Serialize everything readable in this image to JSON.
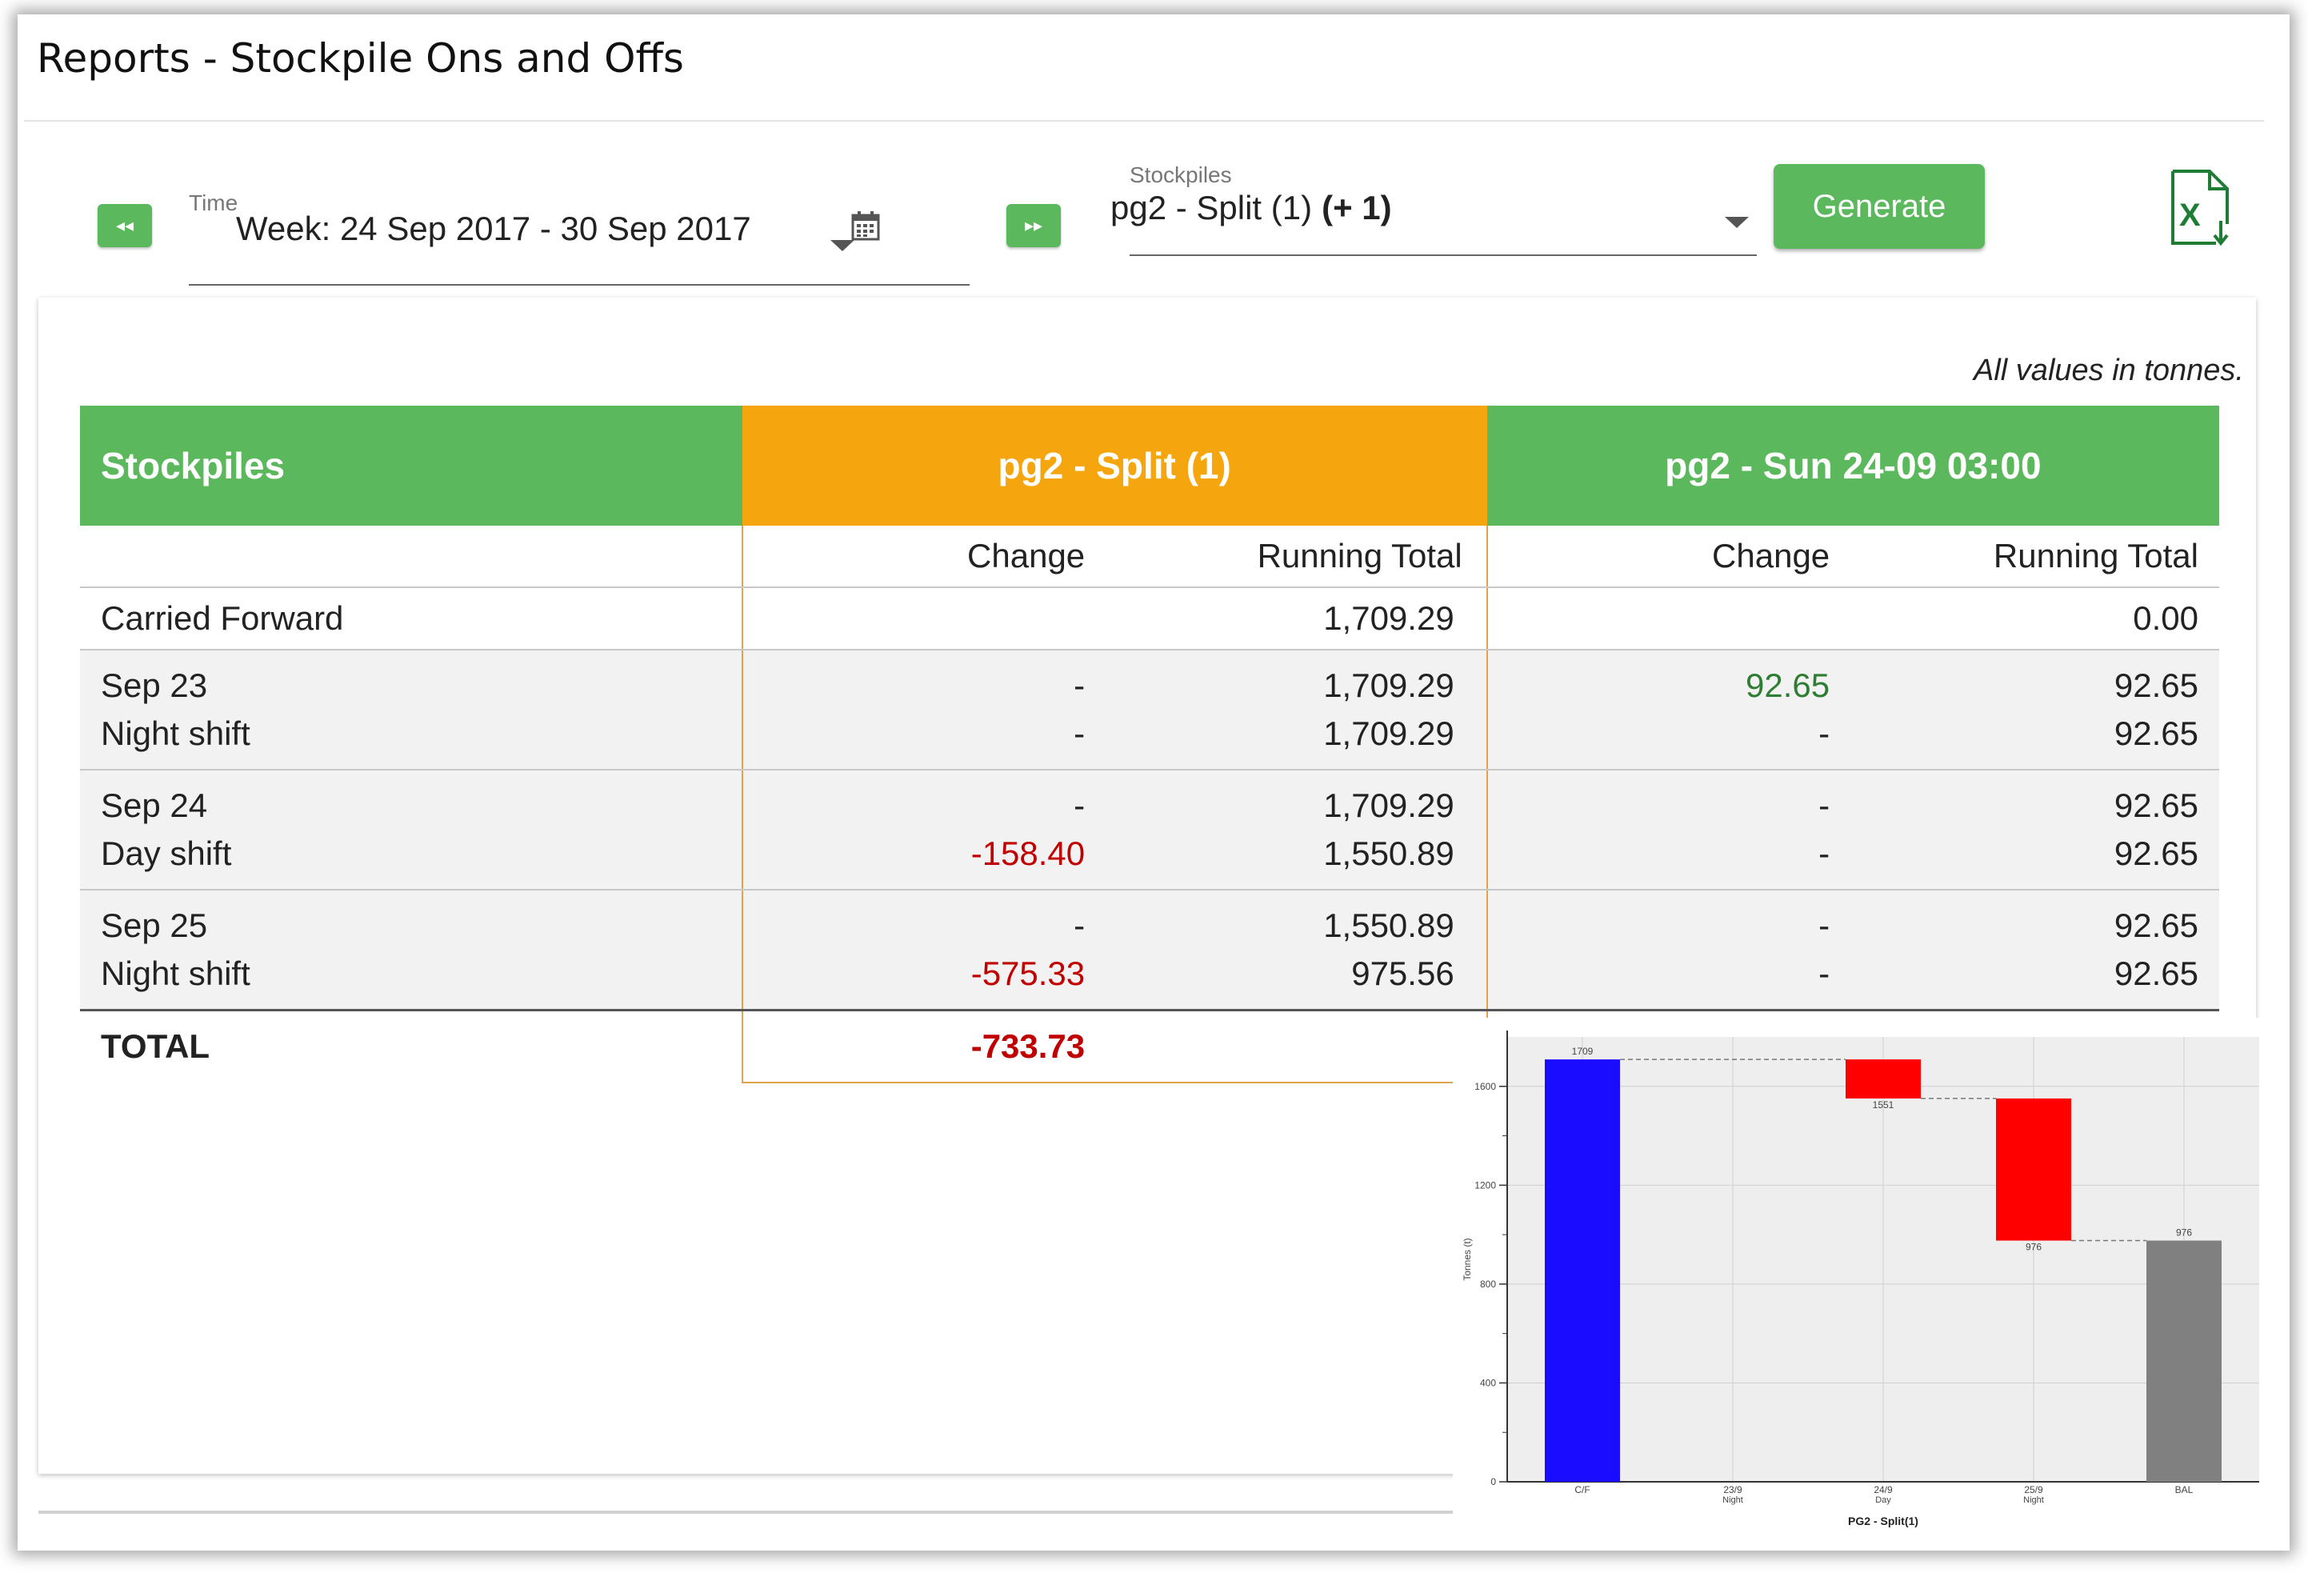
{
  "page": {
    "title": "Reports - Stockpile Ons and Offs"
  },
  "controls": {
    "prev_label": "◂◂",
    "next_label": "▸▸",
    "time_label": "Time",
    "time_value": "Week: 24 Sep 2017 - 30 Sep 2017",
    "stockpiles_label": "Stockpiles",
    "stockpiles_value": "pg2 - Split (1)",
    "stockpiles_extra": "(+ 1)",
    "generate_label": "Generate",
    "export_icon": "excel-export-icon"
  },
  "report": {
    "units_note": "All values in tonnes.",
    "header": {
      "stockpiles": "Stockpiles",
      "col1": "pg2 - Split (1)",
      "col2": "pg2 - Sun 24-09 03:00"
    },
    "subheader": {
      "change": "Change",
      "running_total": "Running Total"
    },
    "carried_forward": {
      "label": "Carried Forward",
      "c1_rt": "1,709.29",
      "c2_rt": "0.00"
    },
    "rows": [
      {
        "date": "Sep 23",
        "shift": "Night shift",
        "c1_ch": [
          "-",
          "-"
        ],
        "c1_rt": [
          "1,709.29",
          "1,709.29"
        ],
        "c2_ch": [
          "92.65",
          "-"
        ],
        "c2_rt": [
          "92.65",
          "92.65"
        ]
      },
      {
        "date": "Sep 24",
        "shift": "Day shift",
        "c1_ch": [
          "-",
          "-158.40"
        ],
        "c1_rt": [
          "1,709.29",
          "1,550.89"
        ],
        "c2_ch": [
          "-",
          "-"
        ],
        "c2_rt": [
          "92.65",
          "92.65"
        ]
      },
      {
        "date": "Sep 25",
        "shift": "Night shift",
        "c1_ch": [
          "-",
          "-575.33"
        ],
        "c1_rt": [
          "1,550.89",
          "975.56"
        ],
        "c2_ch": [
          "-",
          "-"
        ],
        "c2_rt": [
          "92.65",
          "92.65"
        ]
      }
    ],
    "total": {
      "label": "TOTAL",
      "c1_ch": "-733.73"
    }
  },
  "colors": {
    "green": "#5cb85c",
    "orange": "#f5a60f",
    "negative": "#c00000",
    "positive": "#2e7d32"
  },
  "chart_data": {
    "type": "bar",
    "subtype": "waterfall",
    "title": "",
    "xlabel": "PG2 - Split(1)",
    "ylabel": "Tonnes (t)",
    "ylim": [
      0,
      1800
    ],
    "yticks": [
      "0",
      "400",
      "800",
      "1200",
      "1600"
    ],
    "categories": [
      {
        "line1": "C/F",
        "line2": ""
      },
      {
        "line1": "23/9",
        "line2": "Night"
      },
      {
        "line1": "24/9",
        "line2": "Day"
      },
      {
        "line1": "25/9",
        "line2": "Night"
      },
      {
        "line1": "BAL",
        "line2": ""
      }
    ],
    "bars": [
      {
        "start": 0,
        "end": 1709,
        "color": "#1a0dff",
        "label": "1709",
        "label_pos": "top"
      },
      null,
      {
        "start": 1709,
        "end": 1551,
        "color": "#ff0000",
        "label": "1551",
        "label_pos": "bottom"
      },
      {
        "start": 1551,
        "end": 976,
        "color": "#ff0000",
        "label": "976",
        "label_pos": "bottom"
      },
      {
        "start": 0,
        "end": 976,
        "color": "#808080",
        "label": "976",
        "label_pos": "top"
      }
    ],
    "grid": true
  }
}
